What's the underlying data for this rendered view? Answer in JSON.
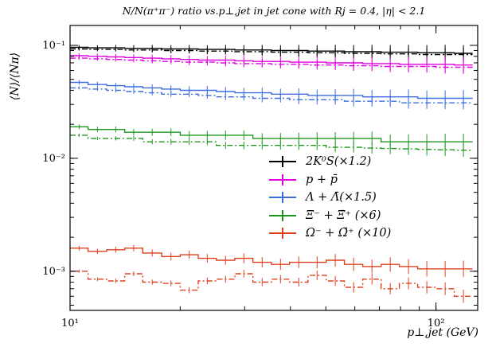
{
  "title": "N/N(π⁺π⁻) ratio vs.p⊥,jet in jet cone with Rj = 0.4, |η| < 2.1",
  "xlabel": "p⊥,jet (GeV)",
  "ylabel": "⟨N⟩/⟨Nπ⟩",
  "chart_data": {
    "type": "line",
    "x_scale": "log",
    "y_scale": "log",
    "xlim": [
      10,
      130
    ],
    "ylim": [
      0.00045,
      0.15
    ],
    "x_ticks": [
      {
        "value": 10,
        "label": "10¹"
      },
      {
        "value": 100,
        "label": "10²"
      }
    ],
    "y_ticks": [
      {
        "value": 0.1,
        "label": "10⁻¹"
      },
      {
        "value": 0.01,
        "label": "10⁻²"
      },
      {
        "value": 0.001,
        "label": "10⁻³"
      }
    ],
    "grid": false,
    "legend_position": "center-right",
    "x_bin_edges": [
      10,
      11.2,
      12.6,
      14.1,
      15.8,
      17.8,
      20,
      22.4,
      25.1,
      28.2,
      31.6,
      35.5,
      39.8,
      44.7,
      50.1,
      56.2,
      63.1,
      70.8,
      79.4,
      89.1,
      100,
      112.2,
      125.9
    ],
    "series": [
      {
        "name": "2K⁰S(×1.2)",
        "color": "#000000",
        "style": "solid",
        "values": [
          0.096,
          0.095,
          0.095,
          0.094,
          0.094,
          0.093,
          0.093,
          0.092,
          0.092,
          0.091,
          0.091,
          0.09,
          0.09,
          0.089,
          0.089,
          0.088,
          0.088,
          0.087,
          0.087,
          0.086,
          0.086,
          0.085
        ]
      },
      {
        "name": "",
        "color": "#000000",
        "style": "dashdot",
        "values": [
          0.093,
          0.092,
          0.092,
          0.091,
          0.091,
          0.09,
          0.09,
          0.089,
          0.089,
          0.088,
          0.088,
          0.087,
          0.087,
          0.086,
          0.086,
          0.085,
          0.085,
          0.084,
          0.084,
          0.083,
          0.083,
          0.083
        ]
      },
      {
        "name": "p + p̄",
        "color": "#e000e0",
        "style": "solid",
        "values": [
          0.081,
          0.08,
          0.079,
          0.078,
          0.077,
          0.076,
          0.075,
          0.074,
          0.074,
          0.073,
          0.072,
          0.072,
          0.071,
          0.071,
          0.07,
          0.07,
          0.069,
          0.069,
          0.068,
          0.068,
          0.068,
          0.067
        ]
      },
      {
        "name": "",
        "color": "#e000e0",
        "style": "dashdot",
        "values": [
          0.077,
          0.076,
          0.075,
          0.074,
          0.073,
          0.072,
          0.071,
          0.071,
          0.07,
          0.069,
          0.069,
          0.068,
          0.068,
          0.067,
          0.067,
          0.066,
          0.066,
          0.065,
          0.065,
          0.065,
          0.064,
          0.064
        ]
      },
      {
        "name": "Λ + Λ̄(×1.5)",
        "color": "#3c6ee0",
        "style": "solid",
        "values": [
          0.047,
          0.045,
          0.044,
          0.043,
          0.042,
          0.041,
          0.04,
          0.04,
          0.039,
          0.038,
          0.038,
          0.037,
          0.037,
          0.036,
          0.036,
          0.036,
          0.035,
          0.035,
          0.035,
          0.034,
          0.034,
          0.034
        ]
      },
      {
        "name": "",
        "color": "#3c6ee0",
        "style": "dashdot",
        "values": [
          0.042,
          0.041,
          0.04,
          0.039,
          0.038,
          0.037,
          0.037,
          0.036,
          0.035,
          0.035,
          0.034,
          0.034,
          0.033,
          0.033,
          0.033,
          0.032,
          0.032,
          0.032,
          0.031,
          0.031,
          0.031,
          0.031
        ]
      },
      {
        "name": "Ξ⁻ + Ξ̄⁺ (×6)",
        "color": "#1e961e",
        "style": "solid",
        "values": [
          0.019,
          0.018,
          0.018,
          0.017,
          0.017,
          0.017,
          0.016,
          0.016,
          0.016,
          0.016,
          0.015,
          0.015,
          0.015,
          0.015,
          0.015,
          0.015,
          0.015,
          0.014,
          0.014,
          0.014,
          0.014,
          0.014
        ]
      },
      {
        "name": "",
        "color": "#1e961e",
        "style": "dashdot",
        "values": [
          0.016,
          0.015,
          0.015,
          0.015,
          0.014,
          0.014,
          0.014,
          0.014,
          0.013,
          0.013,
          0.013,
          0.013,
          0.013,
          0.013,
          0.0125,
          0.0125,
          0.0123,
          0.0122,
          0.0121,
          0.012,
          0.0119,
          0.0118
        ]
      },
      {
        "name": "Ω⁻ + Ω̄⁺ (×10)",
        "color": "#e0401e",
        "style": "solid",
        "values": [
          0.0016,
          0.0015,
          0.00155,
          0.0016,
          0.00145,
          0.00135,
          0.0014,
          0.0013,
          0.00125,
          0.0013,
          0.0012,
          0.00115,
          0.0012,
          0.0012,
          0.00125,
          0.00115,
          0.0011,
          0.00115,
          0.0011,
          0.00105,
          0.00105,
          0.00105
        ]
      },
      {
        "name": "",
        "color": "#e0401e",
        "style": "dashdot",
        "values": [
          0.001,
          0.00085,
          0.00082,
          0.00095,
          0.0008,
          0.00078,
          0.00068,
          0.00082,
          0.00085,
          0.00095,
          0.0008,
          0.00085,
          0.0008,
          0.00092,
          0.00082,
          0.00072,
          0.00085,
          0.0007,
          0.00078,
          0.00072,
          0.0007,
          0.0006
        ]
      }
    ]
  }
}
